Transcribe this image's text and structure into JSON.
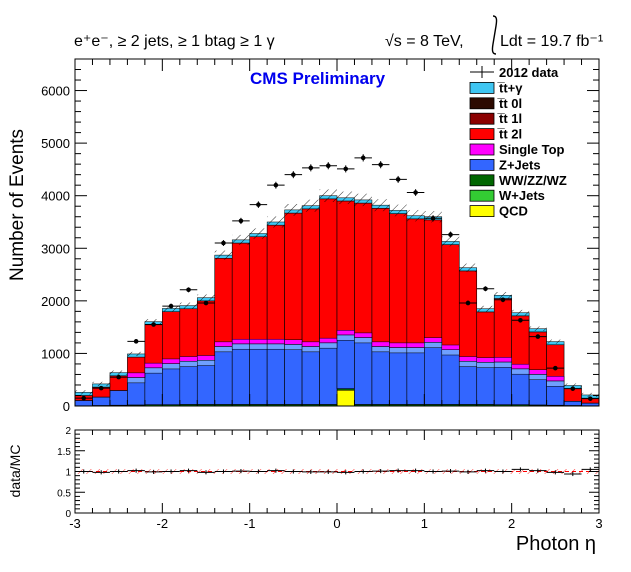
{
  "header": {
    "selection": "e⁺e⁻, ≥ 2 jets, ≥ 1 btag ≥ 1 γ",
    "energy": "√s = 8 TeV,",
    "lumi": "Ldt = 19.7 fb⁻¹",
    "cms": "CMS Preliminary"
  },
  "colors": {
    "ttgamma": "#3ec6f2",
    "tt0l": "#2d0a00",
    "tt1l": "#8b0000",
    "tt2l": "#ff0000",
    "singletop": "#ff00ff",
    "zjets": "#3366ff",
    "wwzzwz": "#006600",
    "wjets": "#33cc33",
    "qcd": "#ffff00",
    "cms": "#0000ee",
    "ratio_line": "#ff0000"
  },
  "chart_data": [
    {
      "type": "bar",
      "stacked": true,
      "xlabel": "Photon η",
      "ylabel": "Number of Events",
      "xlim": [
        -3,
        3
      ],
      "ylim": [
        0,
        6600
      ],
      "xticks": [
        "-3",
        "-2",
        "-1",
        "0",
        "1",
        "2",
        "3"
      ],
      "yticks": [
        "0",
        "1000",
        "2000",
        "3000",
        "4000",
        "5000",
        "6000"
      ],
      "bin_edges": [
        -3.0,
        -2.8,
        -2.6,
        -2.4,
        -2.2,
        -2.0,
        -1.8,
        -1.6,
        -1.4,
        -1.2,
        -1.0,
        -0.8,
        -0.6,
        -0.4,
        -0.2,
        0.0,
        0.2,
        0.4,
        0.6,
        0.8,
        1.0,
        1.2,
        1.4,
        1.6,
        1.8,
        2.0,
        2.2,
        2.4,
        2.6,
        2.8,
        3.0
      ],
      "legend": {
        "position": "top-right",
        "entries": [
          {
            "label": "2012 data",
            "style": "marker"
          },
          {
            "label": "t̅t+γ",
            "series": "ttgamma"
          },
          {
            "label": "t̅t 0l",
            "series": "tt0l"
          },
          {
            "label": "t̅t 1l",
            "series": "tt1l"
          },
          {
            "label": "t̅t 2l",
            "series": "tt2l"
          },
          {
            "label": "Single Top",
            "series": "singletop"
          },
          {
            "label": "Z+Jets",
            "series": "zjets"
          },
          {
            "label": "WW/ZZ/WZ",
            "series": "wwzzwz"
          },
          {
            "label": "W+Jets",
            "series": "wjets"
          },
          {
            "label": "QCD",
            "series": "qcd"
          }
        ]
      },
      "series": [
        {
          "key": "qcd",
          "values": [
            0,
            0,
            0,
            0,
            0,
            0,
            0,
            0,
            0,
            0,
            0,
            0,
            0,
            0,
            0,
            300,
            0,
            0,
            0,
            0,
            0,
            0,
            0,
            0,
            0,
            0,
            0,
            0,
            0,
            0
          ]
        },
        {
          "key": "wjets",
          "values": [
            0,
            0,
            0,
            0,
            0,
            0,
            0,
            0,
            0,
            0,
            0,
            0,
            0,
            0,
            0,
            0,
            0,
            0,
            0,
            0,
            0,
            0,
            0,
            0,
            0,
            0,
            0,
            0,
            0,
            0
          ]
        },
        {
          "key": "wwzzwz",
          "values": [
            5,
            10,
            15,
            20,
            25,
            25,
            30,
            30,
            30,
            30,
            30,
            30,
            30,
            30,
            30,
            30,
            30,
            30,
            30,
            30,
            30,
            30,
            30,
            30,
            25,
            25,
            20,
            15,
            10,
            5
          ]
        },
        {
          "key": "zjets",
          "values": [
            100,
            160,
            280,
            520,
            700,
            780,
            820,
            840,
            1100,
            1150,
            1150,
            1150,
            1140,
            1100,
            1170,
            1020,
            1270,
            1100,
            1080,
            1080,
            1180,
            1040,
            820,
            800,
            810,
            680,
            580,
            460,
            80,
            50
          ]
        },
        {
          "key": "singletop",
          "values": [
            0,
            0,
            0,
            0,
            0,
            0,
            0,
            0,
            0,
            0,
            0,
            0,
            0,
            0,
            0,
            0,
            0,
            0,
            0,
            0,
            0,
            0,
            0,
            0,
            0,
            0,
            0,
            0,
            0,
            0
          ]
        },
        {
          "key": "tt2l",
          "values": [
            95,
            190,
            280,
            390,
            820,
            990,
            1000,
            1130,
            1680,
            1920,
            2040,
            2260,
            2500,
            2620,
            2740,
            2550,
            2560,
            2630,
            2550,
            2450,
            2330,
            2000,
            1720,
            960,
            1210,
            1010,
            810,
            690,
            240,
            95
          ]
        },
        {
          "key": "tt1l",
          "values": [
            0,
            0,
            0,
            0,
            0,
            0,
            0,
            0,
            0,
            0,
            0,
            0,
            0,
            0,
            0,
            0,
            0,
            0,
            0,
            0,
            0,
            0,
            0,
            0,
            0,
            0,
            0,
            0,
            0,
            0
          ]
        },
        {
          "key": "tt0l",
          "values": [
            0,
            0,
            0,
            0,
            0,
            0,
            0,
            0,
            0,
            0,
            0,
            0,
            0,
            0,
            0,
            0,
            0,
            0,
            0,
            0,
            0,
            0,
            0,
            0,
            0,
            0,
            0,
            0,
            0,
            0
          ]
        },
        {
          "key": "ttgamma",
          "values": [
            0,
            0,
            0,
            0,
            0,
            0,
            0,
            0,
            0,
            0,
            0,
            0,
            0,
            0,
            0,
            0,
            0,
            0,
            0,
            0,
            0,
            0,
            0,
            0,
            0,
            0,
            0,
            0,
            0,
            0
          ]
        }
      ],
      "data": {
        "name": "2012 data",
        "values": [
          150,
          340,
          550,
          1230,
          1550,
          1900,
          2210,
          1960,
          3100,
          3520,
          3830,
          4200,
          4400,
          4530,
          4570,
          4510,
          4720,
          4590,
          4310,
          4060,
          3570,
          3260,
          1960,
          2230,
          2020,
          1630,
          1320,
          720,
          330,
          140
        ]
      }
    },
    {
      "type": "line",
      "xlabel": "Photon η",
      "ylabel": "data/MC",
      "xlim": [
        -3,
        3
      ],
      "ylim": [
        0,
        2
      ],
      "xticks": [
        "-3",
        "-2",
        "-1",
        "0",
        "1",
        "2",
        "3"
      ],
      "yticks": [
        "0",
        "0.5",
        "1",
        "1.5",
        "2"
      ],
      "values": [
        1.0,
        0.98,
        1.0,
        1.02,
        0.99,
        1.0,
        1.02,
        0.98,
        1.0,
        1.01,
        1.0,
        1.02,
        1.0,
        0.99,
        0.99,
        0.98,
        1.0,
        1.01,
        1.02,
        1.02,
        1.0,
        1.01,
        0.99,
        1.02,
        1.0,
        1.05,
        1.02,
        0.98,
        0.94,
        1.05
      ],
      "reference": 1
    }
  ]
}
